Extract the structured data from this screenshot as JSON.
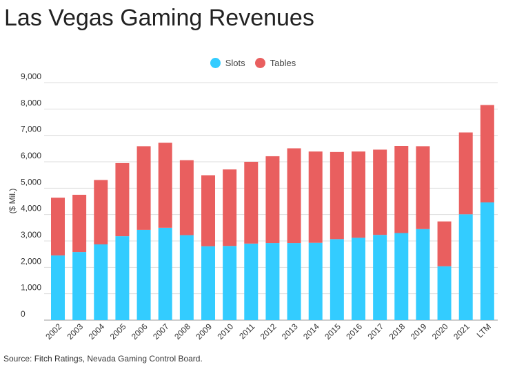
{
  "title": "Las Vegas Gaming Revenues",
  "source": "Source: Fitch Ratings, Nevada Gaming Control Board.",
  "legend": [
    {
      "label": "Slots",
      "color": "#33ccff"
    },
    {
      "label": "Tables",
      "color": "#e95f5f"
    }
  ],
  "chart_data": {
    "type": "bar",
    "stacked": true,
    "categories": [
      "2002",
      "2003",
      "2004",
      "2005",
      "2006",
      "2007",
      "2008",
      "2009",
      "2010",
      "2011",
      "2012",
      "2013",
      "2014",
      "2015",
      "2016",
      "2017",
      "2018",
      "2019",
      "2020",
      "2021",
      "LTM"
    ],
    "series": [
      {
        "name": "Slots",
        "color": "#33ccff",
        "values": [
          2450,
          2580,
          2870,
          3180,
          3420,
          3500,
          3220,
          2800,
          2810,
          2900,
          2920,
          2920,
          2930,
          3070,
          3120,
          3230,
          3300,
          3450,
          2040,
          4010,
          4460
        ]
      },
      {
        "name": "Tables",
        "color": "#e95f5f",
        "values": [
          2190,
          2170,
          2440,
          2770,
          3170,
          3220,
          2840,
          2690,
          2900,
          3100,
          3290,
          3590,
          3460,
          3300,
          3270,
          3230,
          3300,
          3140,
          1700,
          3100,
          3690
        ]
      }
    ],
    "ylabel": "($ Mil.)",
    "ylim": [
      0,
      9000
    ],
    "yticks": [
      "0",
      "1,000",
      "2,000",
      "3,000",
      "4,000",
      "5,000",
      "6,000",
      "7,000",
      "8,000",
      "9,000"
    ],
    "grid": true,
    "legend_position": "top-center"
  }
}
